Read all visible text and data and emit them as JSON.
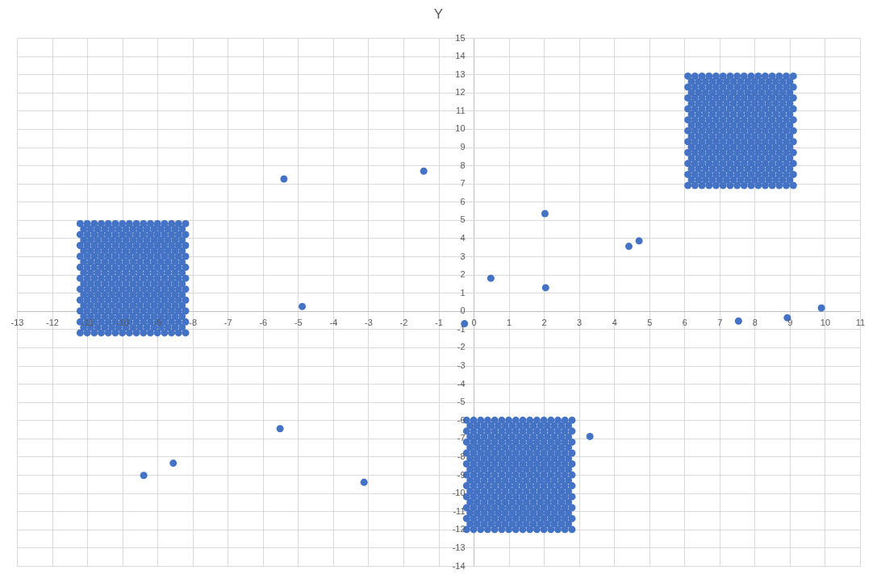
{
  "chart_data": {
    "type": "scatter",
    "title": "Y",
    "color": "#4472c4",
    "marker": "circle",
    "grid": true,
    "xlim": [
      -13,
      11
    ],
    "ylim": [
      -14,
      15
    ],
    "xticks": [
      -13,
      -12,
      -11,
      -10,
      -9,
      -8,
      -7,
      -6,
      -5,
      -4,
      -3,
      -2,
      -1,
      0,
      1,
      2,
      3,
      4,
      5,
      6,
      7,
      8,
      9,
      10,
      11
    ],
    "yticks": [
      -14,
      -13,
      -12,
      -11,
      -10,
      -9,
      -8,
      -7,
      -6,
      -5,
      -4,
      -3,
      -2,
      -1,
      0,
      1,
      2,
      3,
      4,
      5,
      6,
      7,
      8,
      9,
      10,
      11,
      12,
      13,
      14,
      15
    ],
    "x": [
      -5.4,
      -1.42,
      -4.88,
      -0.26,
      0.49,
      2.03,
      2.05,
      4.42,
      4.71,
      7.54,
      8.93,
      9.9,
      -9.39,
      -8.55,
      -5.51,
      -3.12,
      3.31,
      -11.2,
      -11,
      -10.8,
      -10.6,
      -10.4,
      -10.2,
      -10,
      -9.8,
      -9.6,
      -9.4,
      -9.2,
      -9,
      -8.8,
      -8.6,
      -8.4,
      -8.2,
      -11.1,
      -10.9,
      -10.7,
      -10.5,
      -10.3,
      -10.1,
      -9.9,
      -9.7,
      -9.5,
      -9.3,
      -9.1,
      -8.9,
      -8.7,
      -8.5,
      -8.3,
      -11.2,
      -11,
      -10.8,
      -10.6,
      -10.4,
      -10.2,
      -10,
      -9.8,
      -9.6,
      -9.4,
      -9.2,
      -9,
      -8.8,
      -8.6,
      -8.4,
      -8.2,
      -11.1,
      -10.9,
      -10.7,
      -10.5,
      -10.3,
      -10.1,
      -9.9,
      -9.7,
      -9.5,
      -9.3,
      -9.1,
      -8.9,
      -8.7,
      -8.5,
      -8.3,
      -11.2,
      -11,
      -10.8,
      -10.6,
      -10.4,
      -10.2,
      -10,
      -9.8,
      -9.6,
      -9.4,
      -9.2,
      -9,
      -8.8,
      -8.6,
      -8.4,
      -8.2,
      -11.1,
      -10.9,
      -10.7,
      -10.5,
      -10.3,
      -10.1,
      -9.9,
      -9.7,
      -9.5,
      -9.3,
      -9.1,
      -8.9,
      -8.7,
      -8.5,
      -8.3,
      -11.2,
      -11,
      -10.8,
      -10.6,
      -10.4,
      -10.2,
      -10,
      -9.8,
      -9.6,
      -9.4,
      -9.2,
      -9,
      -8.8,
      -8.6,
      -8.4,
      -8.2,
      -11.1,
      -10.9,
      -10.7,
      -10.5,
      -10.3,
      -10.1,
      -9.9,
      -9.7,
      -9.5,
      -9.3,
      -9.1,
      -8.9,
      -8.7,
      -8.5,
      -8.3,
      -11.2,
      -11,
      -10.8,
      -10.6,
      -10.4,
      -10.2,
      -10,
      -9.8,
      -9.6,
      -9.4,
      -9.2,
      -9,
      -8.8,
      -8.6,
      -8.4,
      -8.2,
      -11.1,
      -10.9,
      -10.7,
      -10.5,
      -10.3,
      -10.1,
      -9.9,
      -9.7,
      -9.5,
      -9.3,
      -9.1,
      -8.9,
      -8.7,
      -8.5,
      -8.3,
      -11.2,
      -11,
      -10.8,
      -10.6,
      -10.4,
      -10.2,
      -10,
      -9.8,
      -9.6,
      -9.4,
      -9.2,
      -9,
      -8.8,
      -8.6,
      -8.4,
      -8.2,
      -11.1,
      -10.9,
      -10.7,
      -10.5,
      -10.3,
      -10.1,
      -9.9,
      -9.7,
      -9.5,
      -9.3,
      -9.1,
      -8.9,
      -8.7,
      -8.5,
      -8.3,
      -11.2,
      -11,
      -10.8,
      -10.6,
      -10.4,
      -10.2,
      -10,
      -9.8,
      -9.6,
      -9.4,
      -9.2,
      -9,
      -8.8,
      -8.6,
      -8.4,
      -8.2,
      -11.1,
      -10.9,
      -10.7,
      -10.5,
      -10.3,
      -10.1,
      -9.9,
      -9.7,
      -9.5,
      -9.3,
      -9.1,
      -8.9,
      -8.7,
      -8.5,
      -8.3,
      -11.2,
      -11,
      -10.8,
      -10.6,
      -10.4,
      -10.2,
      -10,
      -9.8,
      -9.6,
      -9.4,
      -9.2,
      -9,
      -8.8,
      -8.6,
      -8.4,
      -8.2,
      -11.1,
      -10.9,
      -10.7,
      -10.5,
      -10.3,
      -10.1,
      -9.9,
      -9.7,
      -9.5,
      -9.3,
      -9.1,
      -8.9,
      -8.7,
      -8.5,
      -8.3,
      -11.2,
      -11,
      -10.8,
      -10.6,
      -10.4,
      -10.2,
      -10,
      -9.8,
      -9.6,
      -9.4,
      -9.2,
      -9,
      -8.8,
      -8.6,
      -8.4,
      -8.2,
      -11.1,
      -10.9,
      -10.7,
      -10.5,
      -10.3,
      -10.1,
      -9.9,
      -9.7,
      -9.5,
      -9.3,
      -9.1,
      -8.9,
      -8.7,
      -8.5,
      -8.3,
      -11.2,
      -11,
      -10.8,
      -10.6,
      -10.4,
      -10.2,
      -10,
      -9.8,
      -9.6,
      -9.4,
      -9.2,
      -9,
      -8.8,
      -8.6,
      -8.4,
      -8.2,
      -11.1,
      -10.9,
      -10.7,
      -10.5,
      -10.3,
      -10.1,
      -9.9,
      -9.7,
      -9.5,
      -9.3,
      -9.1,
      -8.9,
      -8.7,
      -8.5,
      -8.3,
      -11.2,
      -11,
      -10.8,
      -10.6,
      -10.4,
      -10.2,
      -10,
      -9.8,
      -9.6,
      -9.4,
      -9.2,
      -9,
      -8.8,
      -8.6,
      -8.4,
      -8.2,
      -0.2,
      0,
      0.2,
      0.4,
      0.6,
      0.8,
      1,
      1.2,
      1.4,
      1.6,
      1.8,
      2,
      2.2,
      2.4,
      2.6,
      2.8,
      -0.1,
      0.1,
      0.3,
      0.5,
      0.7,
      0.9,
      1.1,
      1.3,
      1.5,
      1.7,
      1.9,
      2.1,
      2.3,
      2.5,
      2.7,
      -0.2,
      0,
      0.2,
      0.4,
      0.6,
      0.8,
      1,
      1.2,
      1.4,
      1.6,
      1.8,
      2,
      2.2,
      2.4,
      2.6,
      2.8,
      -0.1,
      0.1,
      0.3,
      0.5,
      0.7,
      0.9,
      1.1,
      1.3,
      1.5,
      1.7,
      1.9,
      2.1,
      2.3,
      2.5,
      2.7,
      -0.2,
      0,
      0.2,
      0.4,
      0.6,
      0.8,
      1,
      1.2,
      1.4,
      1.6,
      1.8,
      2,
      2.2,
      2.4,
      2.6,
      2.8,
      -0.1,
      0.1,
      0.3,
      0.5,
      0.7,
      0.9,
      1.1,
      1.3,
      1.5,
      1.7,
      1.9,
      2.1,
      2.3,
      2.5,
      2.7,
      -0.2,
      0,
      0.2,
      0.4,
      0.6,
      0.8,
      1,
      1.2,
      1.4,
      1.6,
      1.8,
      2,
      2.2,
      2.4,
      2.6,
      2.8,
      -0.1,
      0.1,
      0.3,
      0.5,
      0.7,
      0.9,
      1.1,
      1.3,
      1.5,
      1.7,
      1.9,
      2.1,
      2.3,
      2.5,
      2.7,
      -0.2,
      0,
      0.2,
      0.4,
      0.6,
      0.8,
      1,
      1.2,
      1.4,
      1.6,
      1.8,
      2,
      2.2,
      2.4,
      2.6,
      2.8,
      -0.1,
      0.1,
      0.3,
      0.5,
      0.7,
      0.9,
      1.1,
      1.3,
      1.5,
      1.7,
      1.9,
      2.1,
      2.3,
      2.5,
      2.7,
      -0.2,
      0,
      0.2,
      0.4,
      0.6,
      0.8,
      1,
      1.2,
      1.4,
      1.6,
      1.8,
      2,
      2.2,
      2.4,
      2.6,
      2.8,
      -0.1,
      0.1,
      0.3,
      0.5,
      0.7,
      0.9,
      1.1,
      1.3,
      1.5,
      1.7,
      1.9,
      2.1,
      2.3,
      2.5,
      2.7,
      -0.2,
      0,
      0.2,
      0.4,
      0.6,
      0.8,
      1,
      1.2,
      1.4,
      1.6,
      1.8,
      2,
      2.2,
      2.4,
      2.6,
      2.8,
      -0.1,
      0.1,
      0.3,
      0.5,
      0.7,
      0.9,
      1.1,
      1.3,
      1.5,
      1.7,
      1.9,
      2.1,
      2.3,
      2.5,
      2.7,
      -0.2,
      0,
      0.2,
      0.4,
      0.6,
      0.8,
      1,
      1.2,
      1.4,
      1.6,
      1.8,
      2,
      2.2,
      2.4,
      2.6,
      2.8,
      -0.1,
      0.1,
      0.3,
      0.5,
      0.7,
      0.9,
      1.1,
      1.3,
      1.5,
      1.7,
      1.9,
      2.1,
      2.3,
      2.5,
      2.7,
      -0.2,
      0,
      0.2,
      0.4,
      0.6,
      0.8,
      1,
      1.2,
      1.4,
      1.6,
      1.8,
      2,
      2.2,
      2.4,
      2.6,
      2.8,
      -0.1,
      0.1,
      0.3,
      0.5,
      0.7,
      0.9,
      1.1,
      1.3,
      1.5,
      1.7,
      1.9,
      2.1,
      2.3,
      2.5,
      2.7,
      -0.2,
      0,
      0.2,
      0.4,
      0.6,
      0.8,
      1,
      1.2,
      1.4,
      1.6,
      1.8,
      2,
      2.2,
      2.4,
      2.6,
      2.8,
      -0.1,
      0.1,
      0.3,
      0.5,
      0.7,
      0.9,
      1.1,
      1.3,
      1.5,
      1.7,
      1.9,
      2.1,
      2.3,
      2.5,
      2.7,
      -0.2,
      0,
      0.2,
      0.4,
      0.6,
      0.8,
      1,
      1.2,
      1.4,
      1.6,
      1.8,
      2,
      2.2,
      2.4,
      2.6,
      2.8,
      6.1,
      6.3,
      6.5,
      6.7,
      6.9,
      7.1,
      7.3,
      7.5,
      7.7,
      7.9,
      8.1,
      8.3,
      8.5,
      8.7,
      8.9,
      9.1,
      6.2,
      6.4,
      6.6,
      6.8,
      7,
      7.2,
      7.4,
      7.6,
      7.8,
      8,
      8.2,
      8.4,
      8.6,
      8.8,
      9,
      6.1,
      6.3,
      6.5,
      6.7,
      6.9,
      7.1,
      7.3,
      7.5,
      7.7,
      7.9,
      8.1,
      8.3,
      8.5,
      8.7,
      8.9,
      9.1,
      6.2,
      6.4,
      6.6,
      6.8,
      7,
      7.2,
      7.4,
      7.6,
      7.8,
      8,
      8.2,
      8.4,
      8.6,
      8.8,
      9,
      6.1,
      6.3,
      6.5,
      6.7,
      6.9,
      7.1,
      7.3,
      7.5,
      7.7,
      7.9,
      8.1,
      8.3,
      8.5,
      8.7,
      8.9,
      9.1,
      6.2,
      6.4,
      6.6,
      6.8,
      7,
      7.2,
      7.4,
      7.6,
      7.8,
      8,
      8.2,
      8.4,
      8.6,
      8.8,
      9,
      6.1,
      6.3,
      6.5,
      6.7,
      6.9,
      7.1,
      7.3,
      7.5,
      7.7,
      7.9,
      8.1,
      8.3,
      8.5,
      8.7,
      8.9,
      9.1,
      6.2,
      6.4,
      6.6,
      6.8,
      7,
      7.2,
      7.4,
      7.6,
      7.8,
      8,
      8.2,
      8.4,
      8.6,
      8.8,
      9,
      6.1,
      6.3,
      6.5,
      6.7,
      6.9,
      7.1,
      7.3,
      7.5,
      7.7,
      7.9,
      8.1,
      8.3,
      8.5,
      8.7,
      8.9,
      9.1,
      6.2,
      6.4,
      6.6,
      6.8,
      7,
      7.2,
      7.4,
      7.6,
      7.8,
      8,
      8.2,
      8.4,
      8.6,
      8.8,
      9,
      6.1,
      6.3,
      6.5,
      6.7,
      6.9,
      7.1,
      7.3,
      7.5,
      7.7,
      7.9,
      8.1,
      8.3,
      8.5,
      8.7,
      8.9,
      9.1,
      6.2,
      6.4,
      6.6,
      6.8,
      7,
      7.2,
      7.4,
      7.6,
      7.8,
      8,
      8.2,
      8.4,
      8.6,
      8.8,
      9,
      6.1,
      6.3,
      6.5,
      6.7,
      6.9,
      7.1,
      7.3,
      7.5,
      7.7,
      7.9,
      8.1,
      8.3,
      8.5,
      8.7,
      8.9,
      9.1,
      6.2,
      6.4,
      6.6,
      6.8,
      7,
      7.2,
      7.4,
      7.6,
      7.8,
      8,
      8.2,
      8.4,
      8.6,
      8.8,
      9,
      6.1,
      6.3,
      6.5,
      6.7,
      6.9,
      7.1,
      7.3,
      7.5,
      7.7,
      7.9,
      8.1,
      8.3,
      8.5,
      8.7,
      8.9,
      9.1,
      6.2,
      6.4,
      6.6,
      6.8,
      7,
      7.2,
      7.4,
      7.6,
      7.8,
      8,
      8.2,
      8.4,
      8.6,
      8.8,
      9,
      6.1,
      6.3,
      6.5,
      6.7,
      6.9,
      7.1,
      7.3,
      7.5,
      7.7,
      7.9,
      8.1,
      8.3,
      8.5,
      8.7,
      8.9,
      9.1,
      6.2,
      6.4,
      6.6,
      6.8,
      7,
      7.2,
      7.4,
      7.6,
      7.8,
      8,
      8.2,
      8.4,
      8.6,
      8.8,
      9,
      6.1,
      6.3,
      6.5,
      6.7,
      6.9,
      7.1,
      7.3,
      7.5,
      7.7,
      7.9,
      8.1,
      8.3,
      8.5,
      8.7,
      8.9,
      9.1,
      6.2,
      6.4,
      6.6,
      6.8,
      7,
      7.2,
      7.4,
      7.6,
      7.8,
      8,
      8.2,
      8.4,
      8.6,
      8.8,
      9,
      6.1,
      6.3,
      6.5,
      6.7,
      6.9,
      7.1,
      7.3,
      7.5,
      7.7,
      7.9,
      8.1,
      8.3,
      8.5,
      8.7,
      8.9,
      9.1
    ],
    "values": [
      7.25,
      7.68,
      0.25,
      -0.7,
      1.8,
      5.35,
      1.28,
      3.55,
      3.85,
      -0.55,
      -0.37,
      0.17,
      -9.03,
      -8.36,
      -6.46,
      -9.41,
      -6.89,
      -1.2,
      -1.2,
      -1.2,
      -1.2,
      -1.2,
      -1.2,
      -1.2,
      -1.2,
      -1.2,
      -1.2,
      -1.2,
      -1.2,
      -1.2,
      -1.2,
      -1.2,
      -1.2,
      -0.9,
      -0.9,
      -0.9,
      -0.9,
      -0.9,
      -0.9,
      -0.9,
      -0.9,
      -0.9,
      -0.9,
      -0.9,
      -0.9,
      -0.9,
      -0.9,
      -0.9,
      -0.6,
      -0.6,
      -0.6,
      -0.6,
      -0.6,
      -0.6,
      -0.6,
      -0.6,
      -0.6,
      -0.6,
      -0.6,
      -0.6,
      -0.6,
      -0.6,
      -0.6,
      -0.6,
      -0.3,
      -0.3,
      -0.3,
      -0.3,
      -0.3,
      -0.3,
      -0.3,
      -0.3,
      -0.3,
      -0.3,
      -0.3,
      -0.3,
      -0.3,
      -0.3,
      -0.3,
      0,
      0,
      0,
      0,
      0,
      0,
      0,
      0,
      0,
      0,
      0,
      0,
      0,
      0,
      0,
      0,
      0.3,
      0.3,
      0.3,
      0.3,
      0.3,
      0.3,
      0.3,
      0.3,
      0.3,
      0.3,
      0.3,
      0.3,
      0.3,
      0.3,
      0.3,
      0.6,
      0.6,
      0.6,
      0.6,
      0.6,
      0.6,
      0.6,
      0.6,
      0.6,
      0.6,
      0.6,
      0.6,
      0.6,
      0.6,
      0.6,
      0.6,
      0.9,
      0.9,
      0.9,
      0.9,
      0.9,
      0.9,
      0.9,
      0.9,
      0.9,
      0.9,
      0.9,
      0.9,
      0.9,
      0.9,
      0.9,
      1.2,
      1.2,
      1.2,
      1.2,
      1.2,
      1.2,
      1.2,
      1.2,
      1.2,
      1.2,
      1.2,
      1.2,
      1.2,
      1.2,
      1.2,
      1.2,
      1.5,
      1.5,
      1.5,
      1.5,
      1.5,
      1.5,
      1.5,
      1.5,
      1.5,
      1.5,
      1.5,
      1.5,
      1.5,
      1.5,
      1.5,
      1.8,
      1.8,
      1.8,
      1.8,
      1.8,
      1.8,
      1.8,
      1.8,
      1.8,
      1.8,
      1.8,
      1.8,
      1.8,
      1.8,
      1.8,
      1.8,
      2.1,
      2.1,
      2.1,
      2.1,
      2.1,
      2.1,
      2.1,
      2.1,
      2.1,
      2.1,
      2.1,
      2.1,
      2.1,
      2.1,
      2.1,
      2.4,
      2.4,
      2.4,
      2.4,
      2.4,
      2.4,
      2.4,
      2.4,
      2.4,
      2.4,
      2.4,
      2.4,
      2.4,
      2.4,
      2.4,
      2.4,
      2.7,
      2.7,
      2.7,
      2.7,
      2.7,
      2.7,
      2.7,
      2.7,
      2.7,
      2.7,
      2.7,
      2.7,
      2.7,
      2.7,
      2.7,
      3,
      3,
      3,
      3,
      3,
      3,
      3,
      3,
      3,
      3,
      3,
      3,
      3,
      3,
      3,
      3,
      3.3,
      3.3,
      3.3,
      3.3,
      3.3,
      3.3,
      3.3,
      3.3,
      3.3,
      3.3,
      3.3,
      3.3,
      3.3,
      3.3,
      3.3,
      3.6,
      3.6,
      3.6,
      3.6,
      3.6,
      3.6,
      3.6,
      3.6,
      3.6,
      3.6,
      3.6,
      3.6,
      3.6,
      3.6,
      3.6,
      3.6,
      3.9,
      3.9,
      3.9,
      3.9,
      3.9,
      3.9,
      3.9,
      3.9,
      3.9,
      3.9,
      3.9,
      3.9,
      3.9,
      3.9,
      3.9,
      4.2,
      4.2,
      4.2,
      4.2,
      4.2,
      4.2,
      4.2,
      4.2,
      4.2,
      4.2,
      4.2,
      4.2,
      4.2,
      4.2,
      4.2,
      4.2,
      4.5,
      4.5,
      4.5,
      4.5,
      4.5,
      4.5,
      4.5,
      4.5,
      4.5,
      4.5,
      4.5,
      4.5,
      4.5,
      4.5,
      4.5,
      4.8,
      4.8,
      4.8,
      4.8,
      4.8,
      4.8,
      4.8,
      4.8,
      4.8,
      4.8,
      4.8,
      4.8,
      4.8,
      4.8,
      4.8,
      4.8,
      -12,
      -12,
      -12,
      -12,
      -12,
      -12,
      -12,
      -12,
      -12,
      -12,
      -12,
      -12,
      -12,
      -12,
      -12,
      -12,
      -11.7,
      -11.7,
      -11.7,
      -11.7,
      -11.7,
      -11.7,
      -11.7,
      -11.7,
      -11.7,
      -11.7,
      -11.7,
      -11.7,
      -11.7,
      -11.7,
      -11.7,
      -11.4,
      -11.4,
      -11.4,
      -11.4,
      -11.4,
      -11.4,
      -11.4,
      -11.4,
      -11.4,
      -11.4,
      -11.4,
      -11.4,
      -11.4,
      -11.4,
      -11.4,
      -11.4,
      -11.1,
      -11.1,
      -11.1,
      -11.1,
      -11.1,
      -11.1,
      -11.1,
      -11.1,
      -11.1,
      -11.1,
      -11.1,
      -11.1,
      -11.1,
      -11.1,
      -11.1,
      -10.8,
      -10.8,
      -10.8,
      -10.8,
      -10.8,
      -10.8,
      -10.8,
      -10.8,
      -10.8,
      -10.8,
      -10.8,
      -10.8,
      -10.8,
      -10.8,
      -10.8,
      -10.8,
      -10.5,
      -10.5,
      -10.5,
      -10.5,
      -10.5,
      -10.5,
      -10.5,
      -10.5,
      -10.5,
      -10.5,
      -10.5,
      -10.5,
      -10.5,
      -10.5,
      -10.5,
      -10.2,
      -10.2,
      -10.2,
      -10.2,
      -10.2,
      -10.2,
      -10.2,
      -10.2,
      -10.2,
      -10.2,
      -10.2,
      -10.2,
      -10.2,
      -10.2,
      -10.2,
      -10.2,
      -9.9,
      -9.9,
      -9.9,
      -9.9,
      -9.9,
      -9.9,
      -9.9,
      -9.9,
      -9.9,
      -9.9,
      -9.9,
      -9.9,
      -9.9,
      -9.9,
      -9.9,
      -9.6,
      -9.6,
      -9.6,
      -9.6,
      -9.6,
      -9.6,
      -9.6,
      -9.6,
      -9.6,
      -9.6,
      -9.6,
      -9.6,
      -9.6,
      -9.6,
      -9.6,
      -9.6,
      -9.3,
      -9.3,
      -9.3,
      -9.3,
      -9.3,
      -9.3,
      -9.3,
      -9.3,
      -9.3,
      -9.3,
      -9.3,
      -9.3,
      -9.3,
      -9.3,
      -9.3,
      -9,
      -9,
      -9,
      -9,
      -9,
      -9,
      -9,
      -9,
      -9,
      -9,
      -9,
      -9,
      -9,
      -9,
      -9,
      -9,
      -8.7,
      -8.7,
      -8.7,
      -8.7,
      -8.7,
      -8.7,
      -8.7,
      -8.7,
      -8.7,
      -8.7,
      -8.7,
      -8.7,
      -8.7,
      -8.7,
      -8.7,
      -8.4,
      -8.4,
      -8.4,
      -8.4,
      -8.4,
      -8.4,
      -8.4,
      -8.4,
      -8.4,
      -8.4,
      -8.4,
      -8.4,
      -8.4,
      -8.4,
      -8.4,
      -8.4,
      -8.1,
      -8.1,
      -8.1,
      -8.1,
      -8.1,
      -8.1,
      -8.1,
      -8.1,
      -8.1,
      -8.1,
      -8.1,
      -8.1,
      -8.1,
      -8.1,
      -8.1,
      -7.8,
      -7.8,
      -7.8,
      -7.8,
      -7.8,
      -7.8,
      -7.8,
      -7.8,
      -7.8,
      -7.8,
      -7.8,
      -7.8,
      -7.8,
      -7.8,
      -7.8,
      -7.8,
      -7.5,
      -7.5,
      -7.5,
      -7.5,
      -7.5,
      -7.5,
      -7.5,
      -7.5,
      -7.5,
      -7.5,
      -7.5,
      -7.5,
      -7.5,
      -7.5,
      -7.5,
      -7.2,
      -7.2,
      -7.2,
      -7.2,
      -7.2,
      -7.2,
      -7.2,
      -7.2,
      -7.2,
      -7.2,
      -7.2,
      -7.2,
      -7.2,
      -7.2,
      -7.2,
      -7.2,
      -6.9,
      -6.9,
      -6.9,
      -6.9,
      -6.9,
      -6.9,
      -6.9,
      -6.9,
      -6.9,
      -6.9,
      -6.9,
      -6.9,
      -6.9,
      -6.9,
      -6.9,
      -6.6,
      -6.6,
      -6.6,
      -6.6,
      -6.6,
      -6.6,
      -6.6,
      -6.6,
      -6.6,
      -6.6,
      -6.6,
      -6.6,
      -6.6,
      -6.6,
      -6.6,
      -6.6,
      -6.3,
      -6.3,
      -6.3,
      -6.3,
      -6.3,
      -6.3,
      -6.3,
      -6.3,
      -6.3,
      -6.3,
      -6.3,
      -6.3,
      -6.3,
      -6.3,
      -6.3,
      -6,
      -6,
      -6,
      -6,
      -6,
      -6,
      -6,
      -6,
      -6,
      -6,
      -6,
      -6,
      -6,
      -6,
      -6,
      -6,
      6.9,
      6.9,
      6.9,
      6.9,
      6.9,
      6.9,
      6.9,
      6.9,
      6.9,
      6.9,
      6.9,
      6.9,
      6.9,
      6.9,
      6.9,
      6.9,
      7.2,
      7.2,
      7.2,
      7.2,
      7.2,
      7.2,
      7.2,
      7.2,
      7.2,
      7.2,
      7.2,
      7.2,
      7.2,
      7.2,
      7.2,
      7.5,
      7.5,
      7.5,
      7.5,
      7.5,
      7.5,
      7.5,
      7.5,
      7.5,
      7.5,
      7.5,
      7.5,
      7.5,
      7.5,
      7.5,
      7.5,
      7.8,
      7.8,
      7.8,
      7.8,
      7.8,
      7.8,
      7.8,
      7.8,
      7.8,
      7.8,
      7.8,
      7.8,
      7.8,
      7.8,
      7.8,
      8.1,
      8.1,
      8.1,
      8.1,
      8.1,
      8.1,
      8.1,
      8.1,
      8.1,
      8.1,
      8.1,
      8.1,
      8.1,
      8.1,
      8.1,
      8.1,
      8.4,
      8.4,
      8.4,
      8.4,
      8.4,
      8.4,
      8.4,
      8.4,
      8.4,
      8.4,
      8.4,
      8.4,
      8.4,
      8.4,
      8.4,
      8.7,
      8.7,
      8.7,
      8.7,
      8.7,
      8.7,
      8.7,
      8.7,
      8.7,
      8.7,
      8.7,
      8.7,
      8.7,
      8.7,
      8.7,
      8.7,
      9,
      9,
      9,
      9,
      9,
      9,
      9,
      9,
      9,
      9,
      9,
      9,
      9,
      9,
      9,
      9.3,
      9.3,
      9.3,
      9.3,
      9.3,
      9.3,
      9.3,
      9.3,
      9.3,
      9.3,
      9.3,
      9.3,
      9.3,
      9.3,
      9.3,
      9.3,
      9.6,
      9.6,
      9.6,
      9.6,
      9.6,
      9.6,
      9.6,
      9.6,
      9.6,
      9.6,
      9.6,
      9.6,
      9.6,
      9.6,
      9.6,
      9.9,
      9.9,
      9.9,
      9.9,
      9.9,
      9.9,
      9.9,
      9.9,
      9.9,
      9.9,
      9.9,
      9.9,
      9.9,
      9.9,
      9.9,
      9.9,
      10.2,
      10.2,
      10.2,
      10.2,
      10.2,
      10.2,
      10.2,
      10.2,
      10.2,
      10.2,
      10.2,
      10.2,
      10.2,
      10.2,
      10.2,
      10.5,
      10.5,
      10.5,
      10.5,
      10.5,
      10.5,
      10.5,
      10.5,
      10.5,
      10.5,
      10.5,
      10.5,
      10.5,
      10.5,
      10.5,
      10.5,
      10.8,
      10.8,
      10.8,
      10.8,
      10.8,
      10.8,
      10.8,
      10.8,
      10.8,
      10.8,
      10.8,
      10.8,
      10.8,
      10.8,
      10.8,
      11.1,
      11.1,
      11.1,
      11.1,
      11.1,
      11.1,
      11.1,
      11.1,
      11.1,
      11.1,
      11.1,
      11.1,
      11.1,
      11.1,
      11.1,
      11.1,
      11.4,
      11.4,
      11.4,
      11.4,
      11.4,
      11.4,
      11.4,
      11.4,
      11.4,
      11.4,
      11.4,
      11.4,
      11.4,
      11.4,
      11.4,
      11.7,
      11.7,
      11.7,
      11.7,
      11.7,
      11.7,
      11.7,
      11.7,
      11.7,
      11.7,
      11.7,
      11.7,
      11.7,
      11.7,
      11.7,
      11.7,
      12,
      12,
      12,
      12,
      12,
      12,
      12,
      12,
      12,
      12,
      12,
      12,
      12,
      12,
      12,
      12.3,
      12.3,
      12.3,
      12.3,
      12.3,
      12.3,
      12.3,
      12.3,
      12.3,
      12.3,
      12.3,
      12.3,
      12.3,
      12.3,
      12.3,
      12.3,
      12.6,
      12.6,
      12.6,
      12.6,
      12.6,
      12.6,
      12.6,
      12.6,
      12.6,
      12.6,
      12.6,
      12.6,
      12.6,
      12.6,
      12.6,
      12.9,
      12.9,
      12.9,
      12.9,
      12.9,
      12.9,
      12.9,
      12.9,
      12.9,
      12.9,
      12.9,
      12.9,
      12.9,
      12.9,
      12.9,
      12.9
    ]
  }
}
